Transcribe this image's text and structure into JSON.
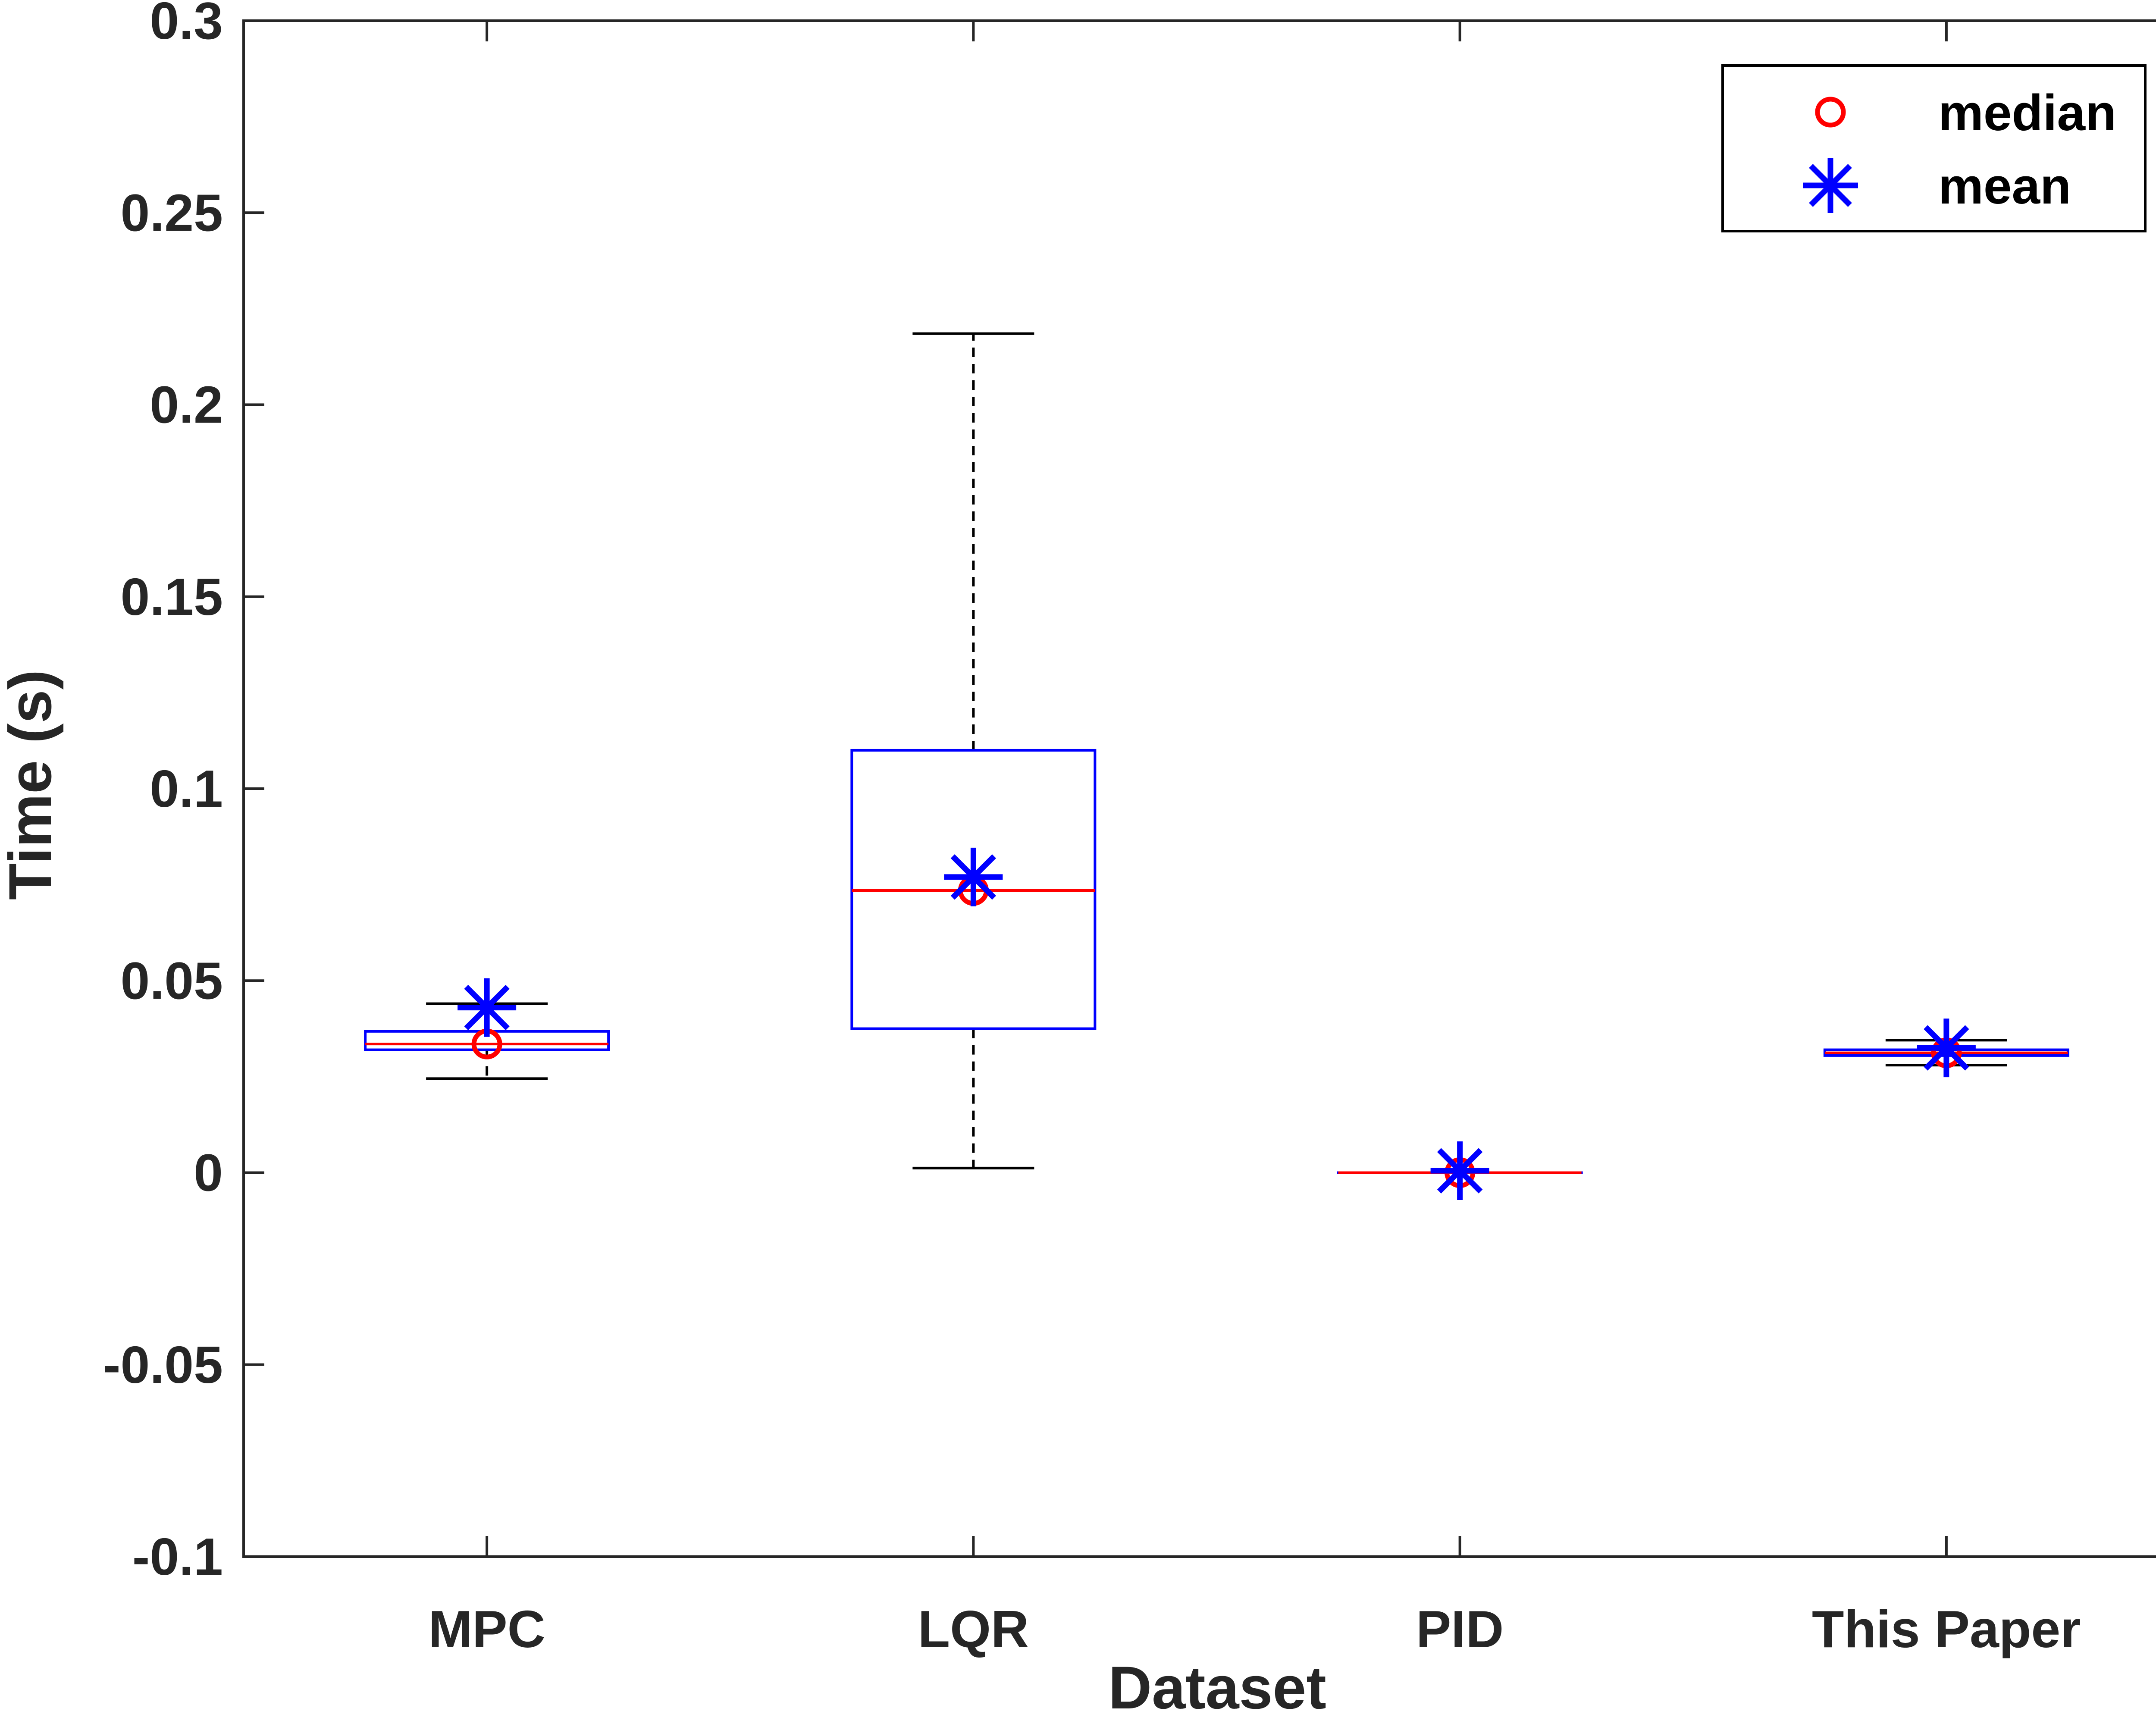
{
  "chart_data": {
    "type": "box",
    "xlabel": "Dataset",
    "ylabel": "Time (s)",
    "ylim": [
      -0.1,
      0.3
    ],
    "yticks": [
      -0.1,
      -0.05,
      0,
      0.05,
      0.1,
      0.15,
      0.2,
      0.25,
      0.3
    ],
    "ytick_labels": [
      "-0.1",
      "-0.05",
      "0",
      "0.05",
      "0.1",
      "0.15",
      "0.2",
      "0.25",
      "0.3"
    ],
    "categories": [
      "MPC",
      "LQR",
      "PID",
      "This Paper"
    ],
    "boxes": [
      {
        "category": "MPC",
        "whisker_low": 0.0245,
        "q1": 0.032,
        "median": 0.0335,
        "q3": 0.0368,
        "whisker_high": 0.044,
        "mean": 0.043
      },
      {
        "category": "LQR",
        "whisker_low": 0.0012,
        "q1": 0.0375,
        "median": 0.0735,
        "q3": 0.11,
        "whisker_high": 0.2185,
        "mean": 0.077
      },
      {
        "category": "PID",
        "whisker_low": 0.0,
        "q1": 0.0,
        "median": 0.0,
        "q3": 0.0,
        "whisker_high": 0.0,
        "mean": 0.0005
      },
      {
        "category": "This Paper",
        "whisker_low": 0.028,
        "q1": 0.0305,
        "median": 0.0312,
        "q3": 0.032,
        "whisker_high": 0.0345,
        "mean": 0.0325
      }
    ],
    "legend": {
      "position": "top-right",
      "entries": [
        {
          "label": "median",
          "marker": "circle",
          "color": "#ff0000"
        },
        {
          "label": "mean",
          "marker": "asterisk",
          "color": "#0000ff"
        }
      ]
    },
    "colors": {
      "box": "#0000ff",
      "median_line": "#ff0000",
      "whisker": "#000000",
      "axes": "#262626"
    }
  }
}
